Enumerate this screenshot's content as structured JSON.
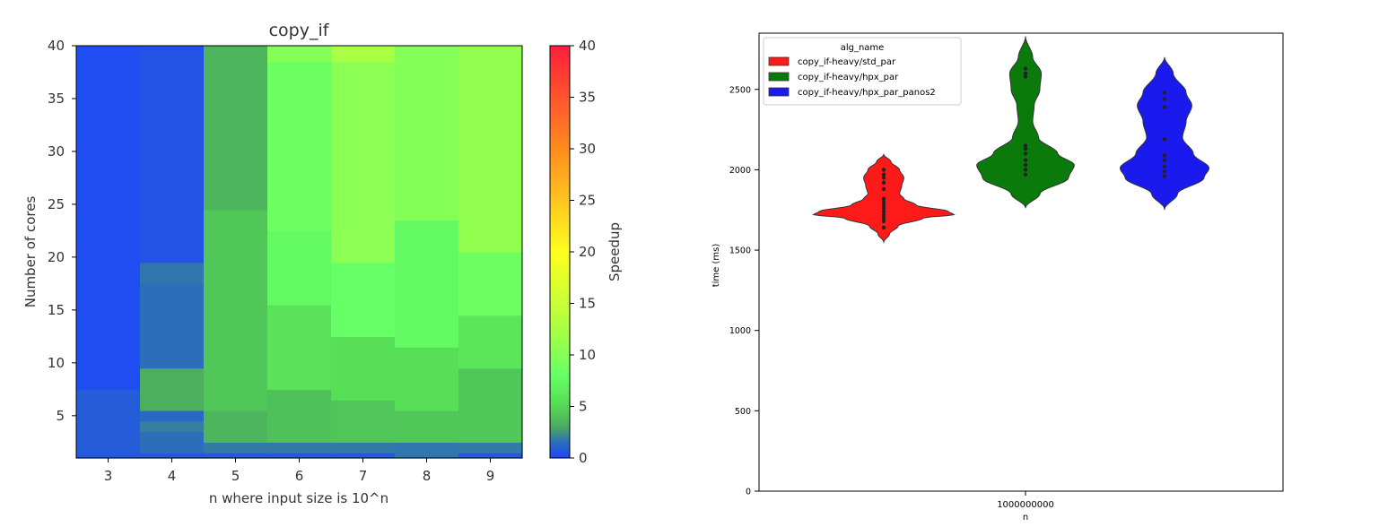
{
  "chart_data": [
    {
      "type": "heatmap",
      "title": "copy_if",
      "xlabel": "n where input size is 10^n",
      "ylabel": "Number of cores",
      "colorbar_label": "Speedup",
      "x_categories": [
        "3",
        "4",
        "5",
        "6",
        "7",
        "8",
        "9"
      ],
      "y_ticks": [
        5,
        10,
        15,
        20,
        25,
        30,
        35,
        40
      ],
      "y_range": [
        1,
        40
      ],
      "colorbar_ticks": [
        0,
        5,
        10,
        15,
        20,
        25,
        30,
        35,
        40
      ],
      "color_range": [
        0,
        40
      ],
      "colorscale": [
        {
          "v": 0,
          "c": "#1e46ff"
        },
        {
          "v": 1.5,
          "c": "#2a6ac0"
        },
        {
          "v": 3,
          "c": "#4aa860"
        },
        {
          "v": 5,
          "c": "#55d855"
        },
        {
          "v": 8,
          "c": "#66ff66"
        },
        {
          "v": 13,
          "c": "#b0ff40"
        },
        {
          "v": 20,
          "c": "#ffff1e"
        },
        {
          "v": 30,
          "c": "#ff8c1e"
        },
        {
          "v": 40,
          "c": "#ff1e3c"
        }
      ],
      "columns": [
        {
          "n": "3",
          "segments": [
            {
              "from": 1,
              "to": 1.5,
              "value": 0.8
            },
            {
              "from": 1.5,
              "to": 7.5,
              "value": 0.9
            },
            {
              "from": 7.5,
              "to": 40,
              "value": 0.3
            }
          ]
        },
        {
          "n": "4",
          "segments": [
            {
              "from": 1,
              "to": 1.5,
              "value": 0.8
            },
            {
              "from": 1.5,
              "to": 3.5,
              "value": 1.6
            },
            {
              "from": 3.5,
              "to": 4.5,
              "value": 2.0
            },
            {
              "from": 4.5,
              "to": 5.5,
              "value": 1.4
            },
            {
              "from": 5.5,
              "to": 9.5,
              "value": 3.3
            },
            {
              "from": 9.5,
              "to": 17.5,
              "value": 1.6
            },
            {
              "from": 17.5,
              "to": 19.5,
              "value": 1.8
            },
            {
              "from": 19.5,
              "to": 39.5,
              "value": 0.6
            },
            {
              "from": 39.5,
              "to": 40,
              "value": 0.4
            }
          ]
        },
        {
          "n": "5",
          "segments": [
            {
              "from": 1,
              "to": 1.5,
              "value": 0.8
            },
            {
              "from": 1.5,
              "to": 2.5,
              "value": 1.9
            },
            {
              "from": 2.5,
              "to": 5.5,
              "value": 3.6
            },
            {
              "from": 5.5,
              "to": 24.5,
              "value": 4.3
            },
            {
              "from": 24.5,
              "to": 40,
              "value": 3.6
            }
          ]
        },
        {
          "n": "6",
          "segments": [
            {
              "from": 1,
              "to": 1.5,
              "value": 0.8
            },
            {
              "from": 1.5,
              "to": 2.5,
              "value": 1.9
            },
            {
              "from": 2.5,
              "to": 7.5,
              "value": 4.0
            },
            {
              "from": 7.5,
              "to": 15.5,
              "value": 5.8
            },
            {
              "from": 15.5,
              "to": 22.5,
              "value": 7.5
            },
            {
              "from": 22.5,
              "to": 38.5,
              "value": 8.5
            },
            {
              "from": 38.5,
              "to": 40,
              "value": 10.0
            }
          ]
        },
        {
          "n": "7",
          "segments": [
            {
              "from": 1,
              "to": 1.5,
              "value": 0.8
            },
            {
              "from": 1.5,
              "to": 2.5,
              "value": 1.9
            },
            {
              "from": 2.5,
              "to": 6.5,
              "value": 4.2
            },
            {
              "from": 6.5,
              "to": 12.5,
              "value": 5.5
            },
            {
              "from": 12.5,
              "to": 19.5,
              "value": 8.0
            },
            {
              "from": 19.5,
              "to": 38.5,
              "value": 10.5
            },
            {
              "from": 38.5,
              "to": 40,
              "value": 12.5
            }
          ]
        },
        {
          "n": "8",
          "segments": [
            {
              "from": 1,
              "to": 2.5,
              "value": 1.8
            },
            {
              "from": 2.5,
              "to": 5.5,
              "value": 4.3
            },
            {
              "from": 5.5,
              "to": 11.5,
              "value": 5.5
            },
            {
              "from": 11.5,
              "to": 23.5,
              "value": 7.5
            },
            {
              "from": 23.5,
              "to": 40,
              "value": 10.0
            }
          ]
        },
        {
          "n": "9",
          "segments": [
            {
              "from": 1,
              "to": 1.5,
              "value": 0.8
            },
            {
              "from": 1.5,
              "to": 2.5,
              "value": 1.9
            },
            {
              "from": 2.5,
              "to": 9.5,
              "value": 4.3
            },
            {
              "from": 9.5,
              "to": 14.5,
              "value": 6.0
            },
            {
              "from": 14.5,
              "to": 20.5,
              "value": 8.5
            },
            {
              "from": 20.5,
              "to": 40,
              "value": 11.0
            }
          ]
        }
      ]
    },
    {
      "type": "violin",
      "xlabel": "n",
      "ylabel": "time (ms)",
      "x_categories": [
        "1000000000"
      ],
      "y_ticks": [
        0,
        500,
        1000,
        1500,
        2000,
        2500
      ],
      "ylim": [
        0,
        2850
      ],
      "grid": false,
      "legend_title": "alg_name",
      "legend_position": "top-left",
      "series": [
        {
          "name": "copy_if-heavy/std_par",
          "color": "#ff1a1a",
          "points": [
            1640,
            1680,
            1700,
            1720,
            1740,
            1760,
            1780,
            1800,
            1820,
            1880,
            1920,
            1950,
            1970,
            2000
          ],
          "density": [
            [
              1550,
              0.0
            ],
            [
              1600,
              0.08
            ],
            [
              1650,
              0.2
            ],
            [
              1700,
              0.55
            ],
            [
              1720,
              0.98
            ],
            [
              1740,
              0.9
            ],
            [
              1780,
              0.45
            ],
            [
              1820,
              0.28
            ],
            [
              1850,
              0.22
            ],
            [
              1900,
              0.25
            ],
            [
              1950,
              0.28
            ],
            [
              2000,
              0.22
            ],
            [
              2050,
              0.1
            ],
            [
              2095,
              0.0
            ]
          ]
        },
        {
          "name": "copy_if-heavy/hpx_par",
          "color": "#0a7a0a",
          "points": [
            1970,
            2000,
            2030,
            2060,
            2100,
            2130,
            2150,
            2580,
            2600,
            2630
          ],
          "density": [
            [
              1765,
              0.0
            ],
            [
              1850,
              0.2
            ],
            [
              1950,
              0.6
            ],
            [
              2030,
              0.68
            ],
            [
              2100,
              0.45
            ],
            [
              2200,
              0.18
            ],
            [
              2300,
              0.1
            ],
            [
              2400,
              0.12
            ],
            [
              2500,
              0.2
            ],
            [
              2600,
              0.22
            ],
            [
              2700,
              0.1
            ],
            [
              2830,
              0.0
            ]
          ]
        },
        {
          "name": "copy_if-heavy/hpx_par_panos2",
          "color": "#1a1aee",
          "points": [
            1960,
            1990,
            2020,
            2060,
            2090,
            2190,
            2390,
            2440,
            2480
          ],
          "density": [
            [
              1755,
              0.0
            ],
            [
              1850,
              0.18
            ],
            [
              1950,
              0.55
            ],
            [
              2010,
              0.62
            ],
            [
              2100,
              0.4
            ],
            [
              2200,
              0.25
            ],
            [
              2300,
              0.3
            ],
            [
              2400,
              0.38
            ],
            [
              2480,
              0.3
            ],
            [
              2600,
              0.12
            ],
            [
              2700,
              0.0
            ]
          ]
        }
      ]
    }
  ]
}
